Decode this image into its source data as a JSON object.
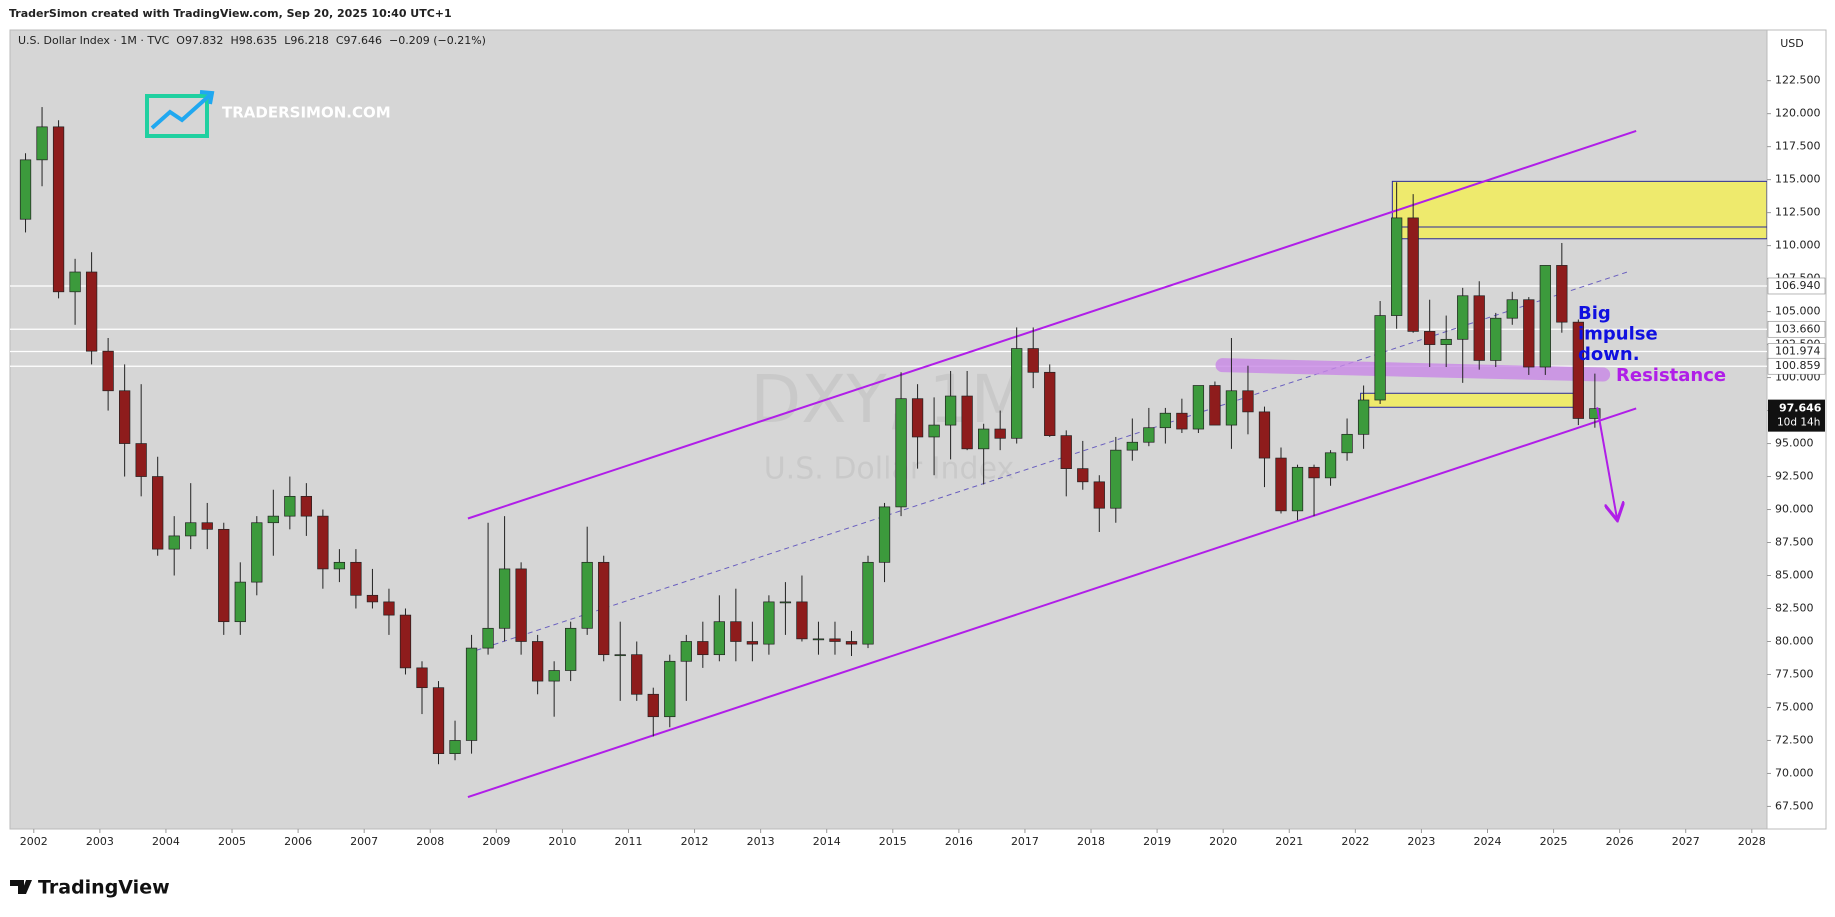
{
  "chart_data": {
    "type": "candlestick",
    "caption": "TraderSimon created with TradingView.com, Sep 20, 2025 10:40 UTC+1",
    "legend": [
      "U.S. Dollar Index · 1M · TVC",
      "O97.832",
      "H98.635",
      "L96.218",
      "C97.646",
      "−0.209 (−0.21%)"
    ],
    "watermark": "DXY, 1M",
    "watermark_sub": "U.S. Dollar Index",
    "logo_text": "TRADERSIMON.COM",
    "brand": "TradingView",
    "currency": "USD",
    "up_color": "#3c9a3c",
    "down_color": "#8e1c1c",
    "xlim": [
      2001.64,
      2028.23
    ],
    "xticks": [
      2002,
      2003,
      2004,
      2005,
      2006,
      2007,
      2008,
      2009,
      2010,
      2011,
      2012,
      2013,
      2014,
      2015,
      2016,
      2017,
      2018,
      2019,
      2020,
      2021,
      2022,
      2023,
      2024,
      2025,
      2026,
      2027,
      2028
    ],
    "ylim": [
      65.79,
      126.34
    ],
    "yticks": [
      {
        "value": 67.5,
        "label": "67.500"
      },
      {
        "value": 70,
        "label": "70.000"
      },
      {
        "value": 72.5,
        "label": "72.500"
      },
      {
        "value": 75,
        "label": "75.000"
      },
      {
        "value": 77.5,
        "label": "77.500"
      },
      {
        "value": 80,
        "label": "80.000"
      },
      {
        "value": 82.5,
        "label": "82.500"
      },
      {
        "value": 85,
        "label": "85.000"
      },
      {
        "value": 87.5,
        "label": "87.500"
      },
      {
        "value": 90,
        "label": "90.000"
      },
      {
        "value": 92.5,
        "label": "92.500"
      },
      {
        "value": 95,
        "label": "95.000"
      },
      {
        "value": 97.5,
        "label": "97.500"
      },
      {
        "value": 100,
        "label": "100.000"
      },
      {
        "value": 102.5,
        "label": "102.500"
      },
      {
        "value": 105,
        "label": "105.000"
      },
      {
        "value": 107.5,
        "label": "107.500"
      },
      {
        "value": 110,
        "label": "110.000"
      },
      {
        "value": 112.5,
        "label": "112.500"
      },
      {
        "value": 115,
        "label": "115.000"
      },
      {
        "value": 117.5,
        "label": "117.500"
      },
      {
        "value": 120,
        "label": "120.000"
      },
      {
        "value": 122.5,
        "label": "122.500"
      }
    ],
    "x": [
      2001.75,
      2002,
      2002.25,
      2002.5,
      2002.75,
      2003,
      2003.25,
      2003.5,
      2003.75,
      2004,
      2004.25,
      2004.5,
      2004.75,
      2005,
      2005.25,
      2005.5,
      2005.75,
      2006,
      2006.25,
      2006.5,
      2006.75,
      2007,
      2007.25,
      2007.5,
      2007.75,
      2008,
      2008.25,
      2008.5,
      2008.75,
      2009,
      2009.25,
      2009.5,
      2009.75,
      2010,
      2010.25,
      2010.5,
      2010.75,
      2011,
      2011.25,
      2011.5,
      2011.75,
      2012,
      2012.25,
      2012.5,
      2012.75,
      2013,
      2013.25,
      2013.5,
      2013.75,
      2014,
      2014.25,
      2014.5,
      2014.75,
      2015,
      2015.25,
      2015.5,
      2015.75,
      2016,
      2016.25,
      2016.5,
      2016.75,
      2017,
      2017.25,
      2017.5,
      2017.75,
      2018,
      2018.25,
      2018.5,
      2018.75,
      2019,
      2019.25,
      2019.5,
      2019.75,
      2020,
      2020.25,
      2020.5,
      2020.75,
      2021,
      2021.25,
      2021.5,
      2021.75,
      2022,
      2022.25,
      2022.5,
      2022.75,
      2023,
      2023.25,
      2023.5,
      2023.75,
      2024,
      2024.25,
      2024.5,
      2024.75,
      2025,
      2025.25,
      2025.5
    ],
    "open": [
      112,
      116.5,
      119,
      106.5,
      108,
      102,
      99,
      95,
      92.5,
      87,
      88,
      89,
      88.5,
      81.5,
      84.5,
      89,
      89.5,
      91,
      89.5,
      85.5,
      86,
      83.5,
      83,
      82,
      78,
      76.5,
      71.5,
      72.5,
      79.5,
      81,
      85.5,
      80,
      77,
      77.8,
      81,
      86,
      79,
      79,
      76,
      74.3,
      78.5,
      80,
      79,
      81.5,
      80,
      79.8,
      83,
      83,
      80.2,
      80.2,
      80,
      79.8,
      86,
      90.2,
      98.4,
      95.5,
      96.4,
      98.6,
      94.6,
      96.1,
      95.4,
      102.2,
      100.4,
      95.6,
      93.1,
      92.1,
      90.1,
      94.5,
      95.1,
      96.2,
      97.3,
      96.1,
      99.4,
      96.4,
      99,
      97.4,
      93.9,
      89.9,
      93.2,
      92.4,
      94.3,
      95.7,
      98.3,
      104.7,
      112.1,
      103.5,
      102.5,
      102.9,
      106.2,
      101.3,
      104.5,
      105.9,
      100.8,
      108.5,
      104.2,
      96.9
    ],
    "high": [
      117,
      120.5,
      119.5,
      109,
      109.5,
      103,
      101,
      99.5,
      94,
      89.5,
      92,
      90.5,
      89,
      86,
      89.5,
      91.5,
      92.5,
      92,
      90,
      87,
      87,
      85.5,
      84,
      82.5,
      78.5,
      77,
      74,
      80.5,
      89,
      89.5,
      86,
      80.5,
      78.5,
      81.5,
      88.7,
      86.5,
      81.5,
      80,
      76.5,
      79,
      80.5,
      81.5,
      83.5,
      84,
      81.5,
      83.5,
      84.5,
      85,
      81.5,
      81.5,
      80.8,
      86.5,
      90.5,
      100.4,
      99.5,
      98.5,
      100.5,
      100.5,
      96.5,
      97.5,
      103.8,
      103.8,
      101,
      96,
      95.2,
      92.6,
      95.5,
      96.9,
      97.7,
      97.7,
      98.4,
      99.4,
      99.7,
      103,
      100.9,
      97.8,
      94.7,
      93.4,
      93.4,
      94.5,
      96.9,
      99.4,
      105.8,
      114.8,
      113.9,
      105.9,
      104.7,
      106.8,
      107.3,
      104.9,
      106.5,
      106.1,
      108.5,
      110.2,
      104.4,
      100.3
    ],
    "low": [
      111,
      114.5,
      106,
      104,
      101,
      97.5,
      92.5,
      91,
      86.5,
      85,
      87,
      87,
      80.5,
      80.5,
      83.5,
      86.5,
      88.5,
      88,
      84,
      84.5,
      82.5,
      82.5,
      80.5,
      77.5,
      74.5,
      70.7,
      71,
      71.5,
      79,
      80,
      79,
      76,
      74.3,
      77,
      80.5,
      78.5,
      75.5,
      75.5,
      72.8,
      73.5,
      75.5,
      78,
      78.5,
      78.5,
      78.5,
      79,
      80.5,
      80,
      79,
      79,
      78.9,
      79.5,
      84.5,
      89.5,
      93.1,
      92.6,
      93.8,
      94.5,
      91.9,
      94.5,
      95,
      99.2,
      95.5,
      91,
      91.5,
      88.3,
      89,
      93.7,
      94.8,
      95,
      95.8,
      95.8,
      96.4,
      94.6,
      95.7,
      91.7,
      89.7,
      89.2,
      89.5,
      91.8,
      93.7,
      94.6,
      98,
      103.7,
      103.4,
      100.8,
      100.8,
      99.6,
      100.6,
      100.8,
      104,
      100.2,
      100.2,
      103.4,
      96.4,
      96.2
    ],
    "close": [
      116.5,
      119,
      106.5,
      108,
      102,
      99,
      95,
      92.5,
      87,
      88,
      89,
      88.5,
      81.5,
      84.5,
      89,
      89.5,
      91,
      89.5,
      85.5,
      86,
      83.5,
      83,
      82,
      78,
      76.5,
      71.5,
      72.5,
      79.5,
      81,
      85.5,
      80,
      77,
      77.8,
      81,
      86,
      79,
      79,
      76,
      74.3,
      78.5,
      80,
      79,
      81.5,
      80,
      79.8,
      83,
      83,
      80.2,
      80.2,
      80,
      79.8,
      86,
      90.2,
      98.4,
      95.5,
      96.4,
      98.6,
      94.6,
      96.1,
      95.4,
      102.2,
      100.4,
      95.6,
      93.1,
      92.1,
      90.1,
      94.5,
      95.1,
      96.2,
      97.3,
      96.1,
      99.4,
      96.4,
      99,
      97.4,
      93.9,
      89.9,
      93.2,
      92.4,
      94.3,
      95.7,
      98.3,
      104.7,
      112.1,
      103.5,
      102.5,
      102.9,
      106.2,
      101.3,
      104.5,
      105.9,
      100.8,
      108.5,
      104.2,
      96.9,
      97.646
    ],
    "hlines": [
      {
        "value": 106.94,
        "label": "106.940"
      },
      {
        "value": 103.66,
        "label": "103.660"
      },
      {
        "value": 101.974,
        "label": "101.974"
      },
      {
        "value": 100.859,
        "label": "100.859"
      }
    ],
    "last_price": {
      "value": 97.646,
      "label": "97.646",
      "countdown": "10d 14h"
    },
    "drawings": {
      "zones": [
        {
          "x": [
            2022.56,
            2028.23
          ],
          "y": [
            110.52,
            114.87
          ],
          "mid": 111.41,
          "color": "#f6f04a"
        },
        {
          "x": [
            2022.08,
            2025.31
          ],
          "y": [
            97.75,
            98.81
          ],
          "color": "#f6f04a"
        }
      ],
      "trendlines": [
        {
          "x": [
            2008.57,
            2026.25
          ],
          "y": [
            68.21,
            97.66
          ],
          "color": "#b01ee8",
          "width": 2,
          "dash": false
        },
        {
          "x": [
            2008.57,
            2026.25
          ],
          "y": [
            89.32,
            118.69
          ],
          "color": "#b01ee8",
          "width": 2,
          "dash": false
        },
        {
          "x": [
            2008.57,
            2026.14
          ],
          "y": [
            79.12,
            108.04
          ],
          "color": "#6a5fbf",
          "width": 1,
          "dash": true
        },
        {
          "x": [
            2019.99,
            2025.75
          ],
          "y": [
            100.94,
            100.23
          ],
          "color": "#c887e6",
          "width": 14,
          "dash": false
        }
      ],
      "arrow": {
        "x": [
          2025.66,
          2025.96
        ],
        "y": [
          97.75,
          89.32
        ],
        "color": "#b01ee8"
      }
    },
    "annotations": [
      {
        "lines": [
          "Big",
          "impulse",
          "down."
        ],
        "color": "#1010e0"
      },
      {
        "lines": [
          "Resistance"
        ],
        "color": "#b01ee8"
      }
    ]
  }
}
